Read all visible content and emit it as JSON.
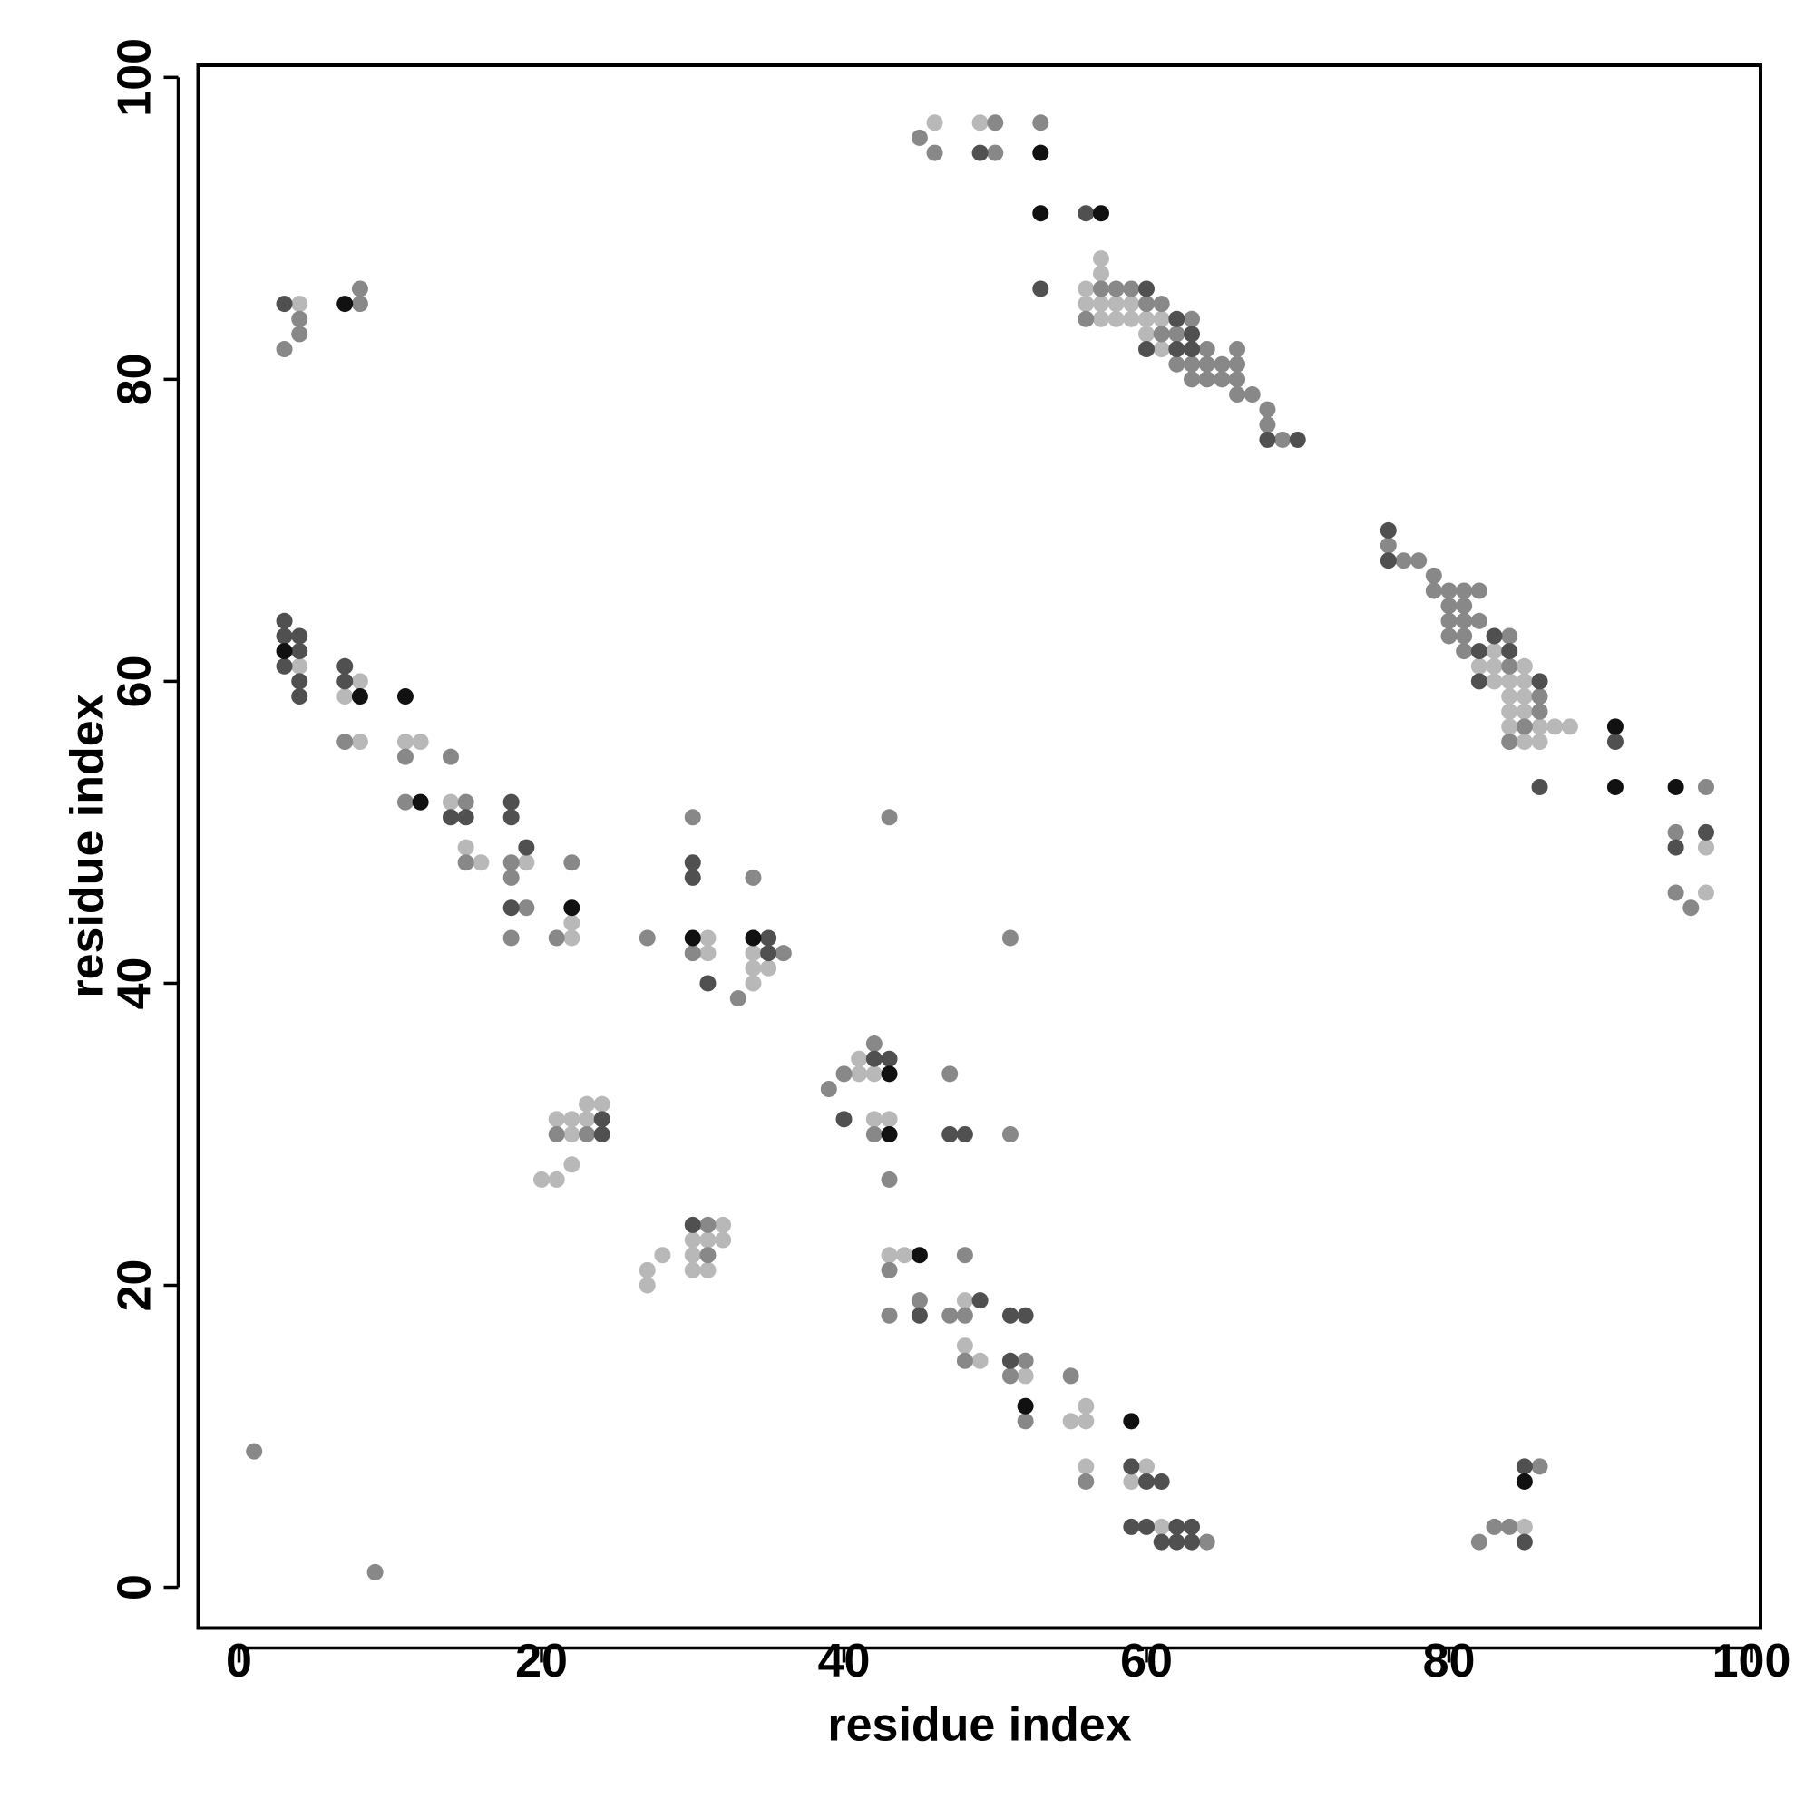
{
  "chart_data": {
    "type": "scatter",
    "x_label": "residue index",
    "y_label": "residue index",
    "xlim": [
      -2.7,
      100.6
    ],
    "ylim": [
      -2.7,
      100.8
    ],
    "xticks": [
      0,
      20,
      40,
      60,
      80,
      100
    ],
    "yticks": [
      0,
      20,
      40,
      60,
      80,
      100
    ],
    "grid": false,
    "series": [
      {
        "color": "#b8b8b8",
        "x": [
          4,
          4,
          7,
          8,
          8,
          11,
          12,
          14,
          15,
          16,
          19,
          22,
          22,
          31,
          31,
          34,
          34,
          35,
          34,
          41,
          41,
          42,
          42,
          43,
          21,
          22,
          23,
          23,
          24,
          22,
          22,
          20,
          21,
          27,
          27,
          28,
          32,
          30,
          31,
          32,
          30,
          30,
          31,
          43,
          44,
          48,
          48,
          49,
          52,
          55,
          56,
          56,
          56,
          60,
          59,
          61,
          85,
          46,
          49,
          57,
          57,
          56,
          56,
          57,
          58,
          59,
          57,
          58,
          59,
          60,
          61,
          60,
          61,
          83,
          82,
          83,
          85,
          83,
          84,
          85,
          84,
          85,
          84,
          85,
          84,
          86,
          87,
          88,
          85,
          86,
          97,
          97
        ],
        "values": [
          85,
          61,
          59,
          60,
          56,
          56,
          56,
          52,
          49,
          48,
          48,
          44,
          43,
          43,
          42,
          42,
          41,
          41,
          40,
          35,
          34,
          34,
          31,
          31,
          31,
          31,
          31,
          32,
          32,
          30,
          28,
          27,
          27,
          21,
          20,
          22,
          24,
          23,
          23,
          23,
          22,
          21,
          21,
          22,
          22,
          19,
          16,
          15,
          14,
          11,
          12,
          11,
          8,
          8,
          7,
          4,
          4,
          97,
          97,
          88,
          87,
          86,
          85,
          85,
          85,
          85,
          84,
          84,
          84,
          84,
          84,
          83,
          82,
          62,
          61,
          61,
          61,
          60,
          60,
          60,
          59,
          59,
          58,
          58,
          57,
          57,
          57,
          57,
          56,
          56,
          49,
          46
        ]
      },
      {
        "color": "#888888",
        "x": [
          4,
          4,
          3,
          8,
          8,
          7,
          11,
          14,
          11,
          15,
          15,
          18,
          18,
          22,
          19,
          18,
          21,
          27,
          30,
          30,
          33,
          34,
          36,
          43,
          51,
          39,
          40,
          42,
          42,
          43,
          47,
          51,
          21,
          23,
          31,
          31,
          43,
          48,
          43,
          45,
          47,
          48,
          48,
          52,
          51,
          52,
          55,
          56,
          64,
          1,
          9,
          82,
          83,
          84,
          86,
          45,
          46,
          50,
          50,
          53,
          57,
          58,
          59,
          60,
          61,
          56,
          63,
          61,
          62,
          64,
          66,
          62,
          63,
          64,
          65,
          66,
          63,
          64,
          65,
          66,
          66,
          67,
          68,
          68,
          69,
          76,
          77,
          78,
          79,
          79,
          80,
          81,
          82,
          80,
          81,
          80,
          81,
          82,
          80,
          81,
          84,
          81,
          84,
          86,
          86,
          85,
          84,
          97,
          95,
          95,
          96
        ],
        "values": [
          84,
          83,
          82,
          85,
          86,
          56,
          55,
          55,
          52,
          52,
          48,
          48,
          47,
          48,
          45,
          43,
          43,
          43,
          51,
          42,
          39,
          47,
          42,
          51,
          43,
          33,
          34,
          36,
          30,
          27,
          34,
          30,
          30,
          30,
          24,
          22,
          21,
          22,
          18,
          19,
          18,
          18,
          15,
          15,
          14,
          11,
          14,
          7,
          3,
          9,
          1,
          3,
          4,
          4,
          8,
          96,
          95,
          97,
          95,
          97,
          86,
          86,
          86,
          85,
          85,
          84,
          84,
          83,
          83,
          82,
          82,
          81,
          81,
          81,
          81,
          81,
          80,
          80,
          80,
          80,
          79,
          79,
          78,
          77,
          76,
          69,
          68,
          68,
          67,
          66,
          66,
          66,
          66,
          65,
          65,
          64,
          64,
          64,
          63,
          63,
          63,
          62,
          61,
          59,
          58,
          57,
          56,
          53,
          50,
          46,
          45
        ]
      },
      {
        "color": "#505050",
        "x": [
          3,
          3,
          3,
          3,
          4,
          4,
          4,
          4,
          7,
          7,
          14,
          15,
          18,
          18,
          19,
          18,
          30,
          30,
          35,
          35,
          31,
          42,
          43,
          40,
          47,
          48,
          24,
          24,
          30,
          45,
          49,
          51,
          52,
          51,
          59,
          60,
          61,
          59,
          60,
          62,
          63,
          61,
          62,
          63,
          85,
          85,
          49,
          56,
          53,
          60,
          62,
          63,
          60,
          62,
          63,
          68,
          70,
          76,
          76,
          83,
          82,
          84,
          82,
          86,
          86,
          91,
          97,
          95
        ],
        "values": [
          85,
          64,
          63,
          61,
          63,
          62,
          60,
          59,
          61,
          60,
          51,
          51,
          52,
          51,
          49,
          45,
          48,
          47,
          43,
          42,
          40,
          35,
          35,
          31,
          30,
          30,
          31,
          30,
          24,
          18,
          19,
          18,
          18,
          15,
          8,
          7,
          7,
          4,
          4,
          4,
          4,
          3,
          3,
          3,
          3,
          8,
          95,
          91,
          86,
          86,
          84,
          83,
          82,
          82,
          82,
          76,
          76,
          70,
          68,
          63,
          62,
          62,
          60,
          60,
          53,
          56,
          50,
          49
        ]
      },
      {
        "color": "#111111",
        "x": [
          3,
          7,
          8,
          11,
          12,
          22,
          30,
          34,
          43,
          43,
          45,
          52,
          59,
          85,
          53,
          53,
          57,
          91,
          91,
          95
        ],
        "values": [
          62,
          85,
          59,
          59,
          52,
          45,
          43,
          43,
          34,
          30,
          22,
          12,
          11,
          7,
          95,
          91,
          91,
          57,
          53,
          53
        ]
      }
    ]
  }
}
